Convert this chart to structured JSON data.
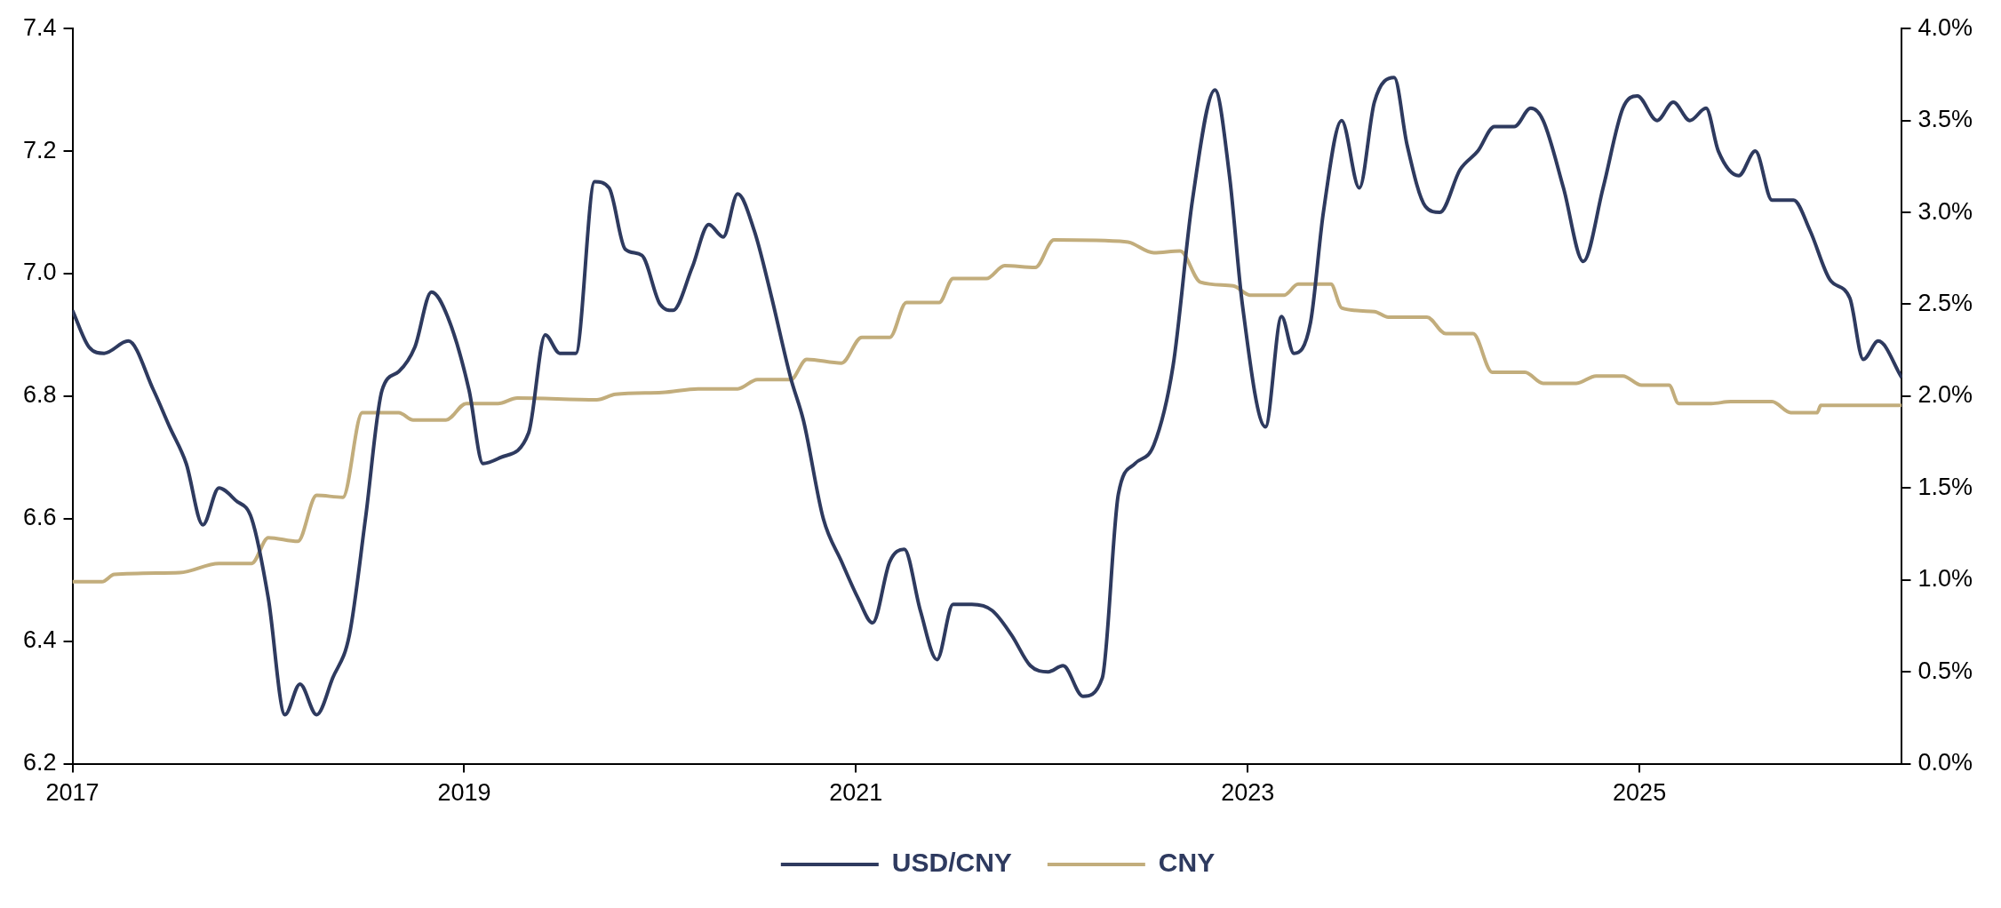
{
  "chart_data": {
    "type": "line",
    "xlim": [
      "2017-01-01",
      "2026-05-05"
    ],
    "xticks": [
      "2017",
      "2019",
      "2021",
      "2023",
      "2025"
    ],
    "ylim": [
      6.2,
      7.4
    ],
    "yticks": [
      {
        "value": 6.2,
        "label": "6.2"
      },
      {
        "value": 6.4,
        "label": "6.4"
      },
      {
        "value": 6.6,
        "label": "6.6"
      },
      {
        "value": 6.8,
        "label": "6.8"
      },
      {
        "value": 7.0,
        "label": "7.0"
      },
      {
        "value": 7.2,
        "label": "7.2"
      },
      {
        "value": 7.4,
        "label": "7.4"
      }
    ],
    "y2lim": [
      0,
      4
    ],
    "y2ticks": [
      {
        "value": 0,
        "label": "0.0%"
      },
      {
        "value": 0.5,
        "label": "0.5%"
      },
      {
        "value": 1,
        "label": "1.0%"
      },
      {
        "value": 1.5,
        "label": "1.5%"
      },
      {
        "value": 2,
        "label": "2.0%"
      },
      {
        "value": 2.5,
        "label": "2.5%"
      },
      {
        "value": 3,
        "label": "3.0%"
      },
      {
        "value": 3.5,
        "label": "3.5%"
      },
      {
        "value": 4,
        "label": "4.0%"
      }
    ],
    "grid": false,
    "legend": "bottom",
    "marker": "none",
    "line_style": "solid",
    "series": [
      {
        "name": "USD/CNY",
        "color": "#2e3a5f",
        "x": [
          "2017-01-01",
          "2017-02-01",
          "2017-03-01",
          "2017-04-15",
          "2017-06-01",
          "2017-07-01",
          "2017-08-01",
          "2017-09-01",
          "2017-10-01",
          "2017-11-01",
          "2017-12-01",
          "2018-01-01",
          "2018-02-01",
          "2018-03-01",
          "2018-04-01",
          "2018-05-01",
          "2018-06-01",
          "2018-07-01",
          "2018-08-01",
          "2018-09-01",
          "2018-10-01",
          "2018-11-01",
          "2018-12-01",
          "2019-01-10",
          "2019-02-05",
          "2019-03-10",
          "2019-05-01",
          "2019-06-01",
          "2019-06-28",
          "2019-07-28",
          "2019-09-01",
          "2019-09-28",
          "2019-10-28",
          "2019-11-28",
          "2020-01-01",
          "2020-01-25",
          "2020-03-01",
          "2020-04-01",
          "2020-04-28",
          "2020-05-25",
          "2020-06-25",
          "2020-07-25",
          "2020-09-01",
          "2020-09-25",
          "2020-11-01",
          "2020-12-05",
          "2021-01-05",
          "2021-02-01",
          "2021-03-05",
          "2021-04-01",
          "2021-05-01",
          "2021-06-01",
          "2021-07-01",
          "2021-08-05",
          "2021-09-12",
          "2021-10-18",
          "2021-11-22",
          "2021-12-25",
          "2022-01-22",
          "2022-02-28",
          "2022-04-05",
          "2022-05-05",
          "2022-06-05",
          "2022-07-10",
          "2022-08-15",
          "2022-09-20",
          "2022-11-01",
          "2022-11-28",
          "2022-12-22",
          "2023-02-03",
          "2023-03-05",
          "2023-03-28",
          "2023-04-28",
          "2023-05-22",
          "2023-06-25",
          "2023-07-28",
          "2023-08-25",
          "2023-10-01",
          "2023-10-25",
          "2023-11-28",
          "2023-12-25",
          "2024-02-01",
          "2024-03-05",
          "2024-04-05",
          "2024-05-12",
          "2024-06-12",
          "2024-07-05",
          "2024-08-12",
          "2024-09-18",
          "2024-10-25",
          "2024-12-01",
          "2024-12-28",
          "2025-02-03",
          "2025-03-05",
          "2025-04-05",
          "2025-05-05",
          "2025-05-28",
          "2025-07-05",
          "2025-08-05",
          "2025-09-05",
          "2025-10-15",
          "2025-11-15",
          "2025-12-22",
          "2026-01-28",
          "2026-02-22",
          "2026-03-22",
          "2026-05-05"
        ],
        "values": [
          6.94,
          6.88,
          6.87,
          6.89,
          6.81,
          6.75,
          6.69,
          6.59,
          6.65,
          6.63,
          6.6,
          6.47,
          6.28,
          6.33,
          6.28,
          6.34,
          6.41,
          6.6,
          6.81,
          6.84,
          6.88,
          6.97,
          6.93,
          6.81,
          6.69,
          6.7,
          6.74,
          6.9,
          6.87,
          6.87,
          7.15,
          7.14,
          7.04,
          7.03,
          6.95,
          6.94,
          7.01,
          7.08,
          7.06,
          7.13,
          7.07,
          6.97,
          6.83,
          6.76,
          6.6,
          6.53,
          6.47,
          6.43,
          6.53,
          6.55,
          6.45,
          6.37,
          6.46,
          6.46,
          6.45,
          6.41,
          6.36,
          6.35,
          6.36,
          6.31,
          6.34,
          6.64,
          6.69,
          6.72,
          6.85,
          7.12,
          7.3,
          7.16,
          6.95,
          6.75,
          6.93,
          6.87,
          6.92,
          7.1,
          7.25,
          7.14,
          7.28,
          7.32,
          7.21,
          7.11,
          7.1,
          7.17,
          7.2,
          7.24,
          7.24,
          7.27,
          7.25,
          7.14,
          7.02,
          7.14,
          7.27,
          7.29,
          7.25,
          7.28,
          7.25,
          7.27,
          7.2,
          7.16,
          7.2,
          7.12,
          7.12,
          7.07,
          6.99,
          6.96,
          6.86,
          6.89,
          6.83
        ]
      },
      {
        "name": "CNY",
        "color": "#c2ad7c",
        "axis": "y2",
        "x": [
          "2017-01-01",
          "2017-02-25",
          "2017-03-20",
          "2017-07-20",
          "2017-10-01",
          "2017-12-01",
          "2018-01-01",
          "2018-02-25",
          "2018-04-01",
          "2018-05-20",
          "2018-06-25",
          "2018-09-01",
          "2018-09-28",
          "2018-11-28",
          "2019-01-05",
          "2019-03-05",
          "2019-04-10",
          "2019-09-05",
          "2019-10-10",
          "2020-01-05",
          "2020-03-12",
          "2020-05-25",
          "2020-07-01",
          "2020-09-01",
          "2020-10-01",
          "2020-12-05",
          "2021-01-12",
          "2021-03-05",
          "2021-04-05",
          "2021-06-05",
          "2021-07-01",
          "2021-09-01",
          "2021-10-05",
          "2021-12-01",
          "2022-01-05",
          "2022-05-20",
          "2022-07-10",
          "2022-08-28",
          "2022-10-05",
          "2022-12-05",
          "2023-01-05",
          "2023-03-10",
          "2023-04-05",
          "2023-06-05",
          "2023-06-25",
          "2023-08-25",
          "2023-09-20",
          "2023-12-01",
          "2024-01-05",
          "2024-02-25",
          "2024-04-01",
          "2024-06-01",
          "2024-07-05",
          "2024-09-05",
          "2024-10-12",
          "2024-12-01",
          "2025-01-05",
          "2025-02-25",
          "2025-03-15",
          "2025-05-15",
          "2025-06-20",
          "2025-09-05",
          "2025-10-10",
          "2025-11-28",
          "2025-12-05",
          "2026-05-05"
        ],
        "values": [
          0.99,
          0.99,
          1.03,
          1.04,
          1.09,
          1.09,
          1.23,
          1.21,
          1.46,
          1.45,
          1.91,
          1.91,
          1.87,
          1.87,
          1.96,
          1.96,
          1.99,
          1.98,
          2.01,
          2.02,
          2.04,
          2.04,
          2.09,
          2.09,
          2.2,
          2.18,
          2.32,
          2.32,
          2.51,
          2.51,
          2.64,
          2.64,
          2.71,
          2.7,
          2.85,
          2.84,
          2.78,
          2.79,
          2.62,
          2.6,
          2.55,
          2.55,
          2.61,
          2.61,
          2.48,
          2.46,
          2.43,
          2.43,
          2.34,
          2.34,
          2.13,
          2.13,
          2.07,
          2.07,
          2.11,
          2.11,
          2.06,
          2.06,
          1.96,
          1.96,
          1.97,
          1.97,
          1.91,
          1.91,
          1.95,
          1.95
        ]
      }
    ]
  }
}
